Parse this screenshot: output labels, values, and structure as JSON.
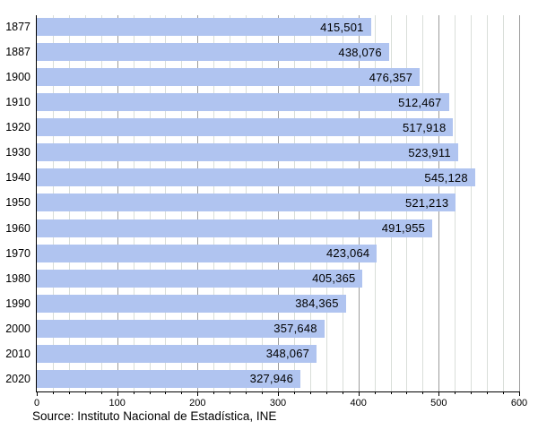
{
  "chart_data": {
    "type": "bar",
    "orientation": "horizontal",
    "title": "",
    "xlabel": "",
    "ylabel": "",
    "categories": [
      "1877",
      "1887",
      "1900",
      "1910",
      "1920",
      "1930",
      "1940",
      "1950",
      "1960",
      "1970",
      "1980",
      "1990",
      "2000",
      "2010",
      "2020"
    ],
    "values": [
      415501,
      438076,
      476357,
      512467,
      517918,
      523911,
      545128,
      521213,
      491955,
      423064,
      405365,
      384365,
      357648,
      348067,
      327946
    ],
    "value_labels": [
      "415,501",
      "438,076",
      "476,357",
      "512,467",
      "517,918",
      "523,911",
      "545,128",
      "521,213",
      "491,955",
      "423,064",
      "405,365",
      "384,365",
      "357,648",
      "348,067",
      "327,946"
    ],
    "x_axis": {
      "min": 0,
      "max": 600000,
      "minor_step": 20000,
      "major_step": 100000,
      "tick_labels": [
        "0",
        "100",
        "200",
        "300",
        "400",
        "500",
        "600"
      ]
    },
    "grid": "vertical, minor light gray every 20k, major darker gray every 100k",
    "legend": "none",
    "bar_color": "#b0c4f0",
    "minor_grid_color": "#d9ded9",
    "major_grid_color": "#9c9c9c",
    "axis_color": "#000000",
    "text_color": "#000000"
  },
  "source_caption": "Source: Instituto Nacional de Estadística, INE"
}
